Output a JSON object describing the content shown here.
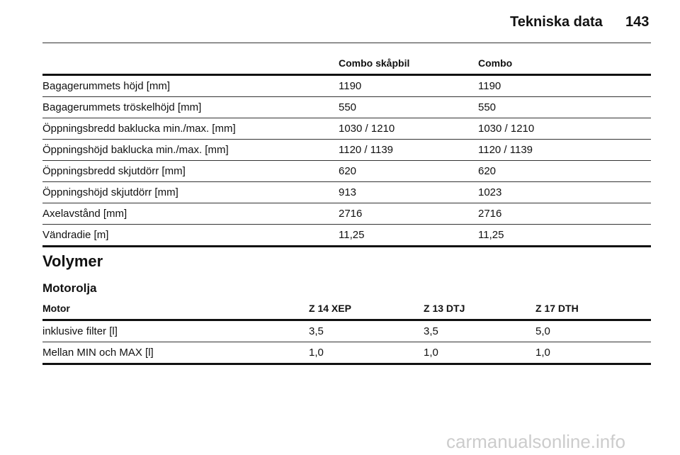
{
  "header": {
    "title": "Tekniska data",
    "page": "143"
  },
  "table1": {
    "columns": [
      "",
      "Combo skåpbil",
      "Combo"
    ],
    "rows": [
      [
        "Bagagerummets höjd [mm]",
        "1190",
        "1190"
      ],
      [
        "Bagagerummets tröskelhöjd [mm]",
        "550",
        "550"
      ],
      [
        "Öppningsbredd baklucka min./max. [mm]",
        "1030 / 1210",
        "1030 / 1210"
      ],
      [
        "Öppningshöjd baklucka min./max. [mm]",
        "1120 / 1139",
        "1120 / 1139"
      ],
      [
        "Öppningsbredd skjutdörr [mm]",
        "620",
        "620"
      ],
      [
        "Öppningshöjd skjutdörr [mm]",
        "913",
        "1023"
      ],
      [
        "Axelavstånd [mm]",
        "2716",
        "2716"
      ],
      [
        "Vändradie [m]",
        "11,25",
        "11,25"
      ]
    ]
  },
  "section": "Volymer",
  "subsection": "Motorolja",
  "table2": {
    "columns": [
      "Motor",
      "Z 14 XEP",
      "Z 13 DTJ",
      "Z 17 DTH"
    ],
    "rows": [
      [
        "inklusive filter [l]",
        "3,5",
        "3,5",
        "5,0"
      ],
      [
        "Mellan MIN och MAX [l]",
        "1,0",
        "1,0",
        "1,0"
      ]
    ]
  },
  "watermark": "carmanualsonline.info"
}
